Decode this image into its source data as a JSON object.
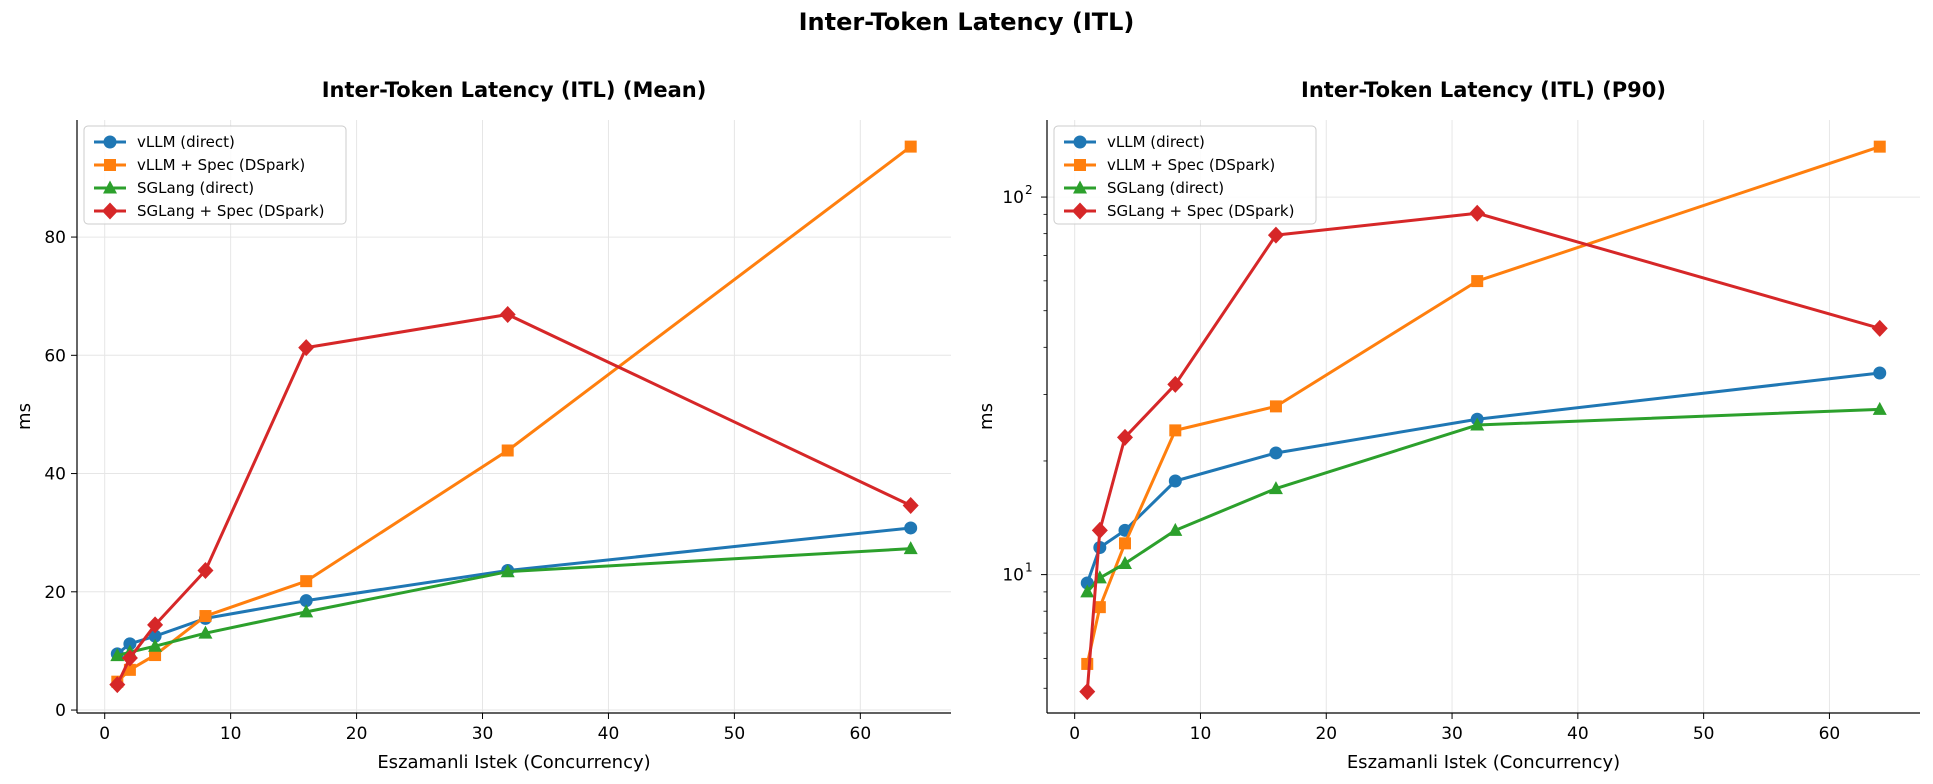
{
  "suptitle": "Inter-Token Latency (ITL)",
  "chart_data": [
    {
      "type": "line",
      "title": "Inter-Token Latency (ITL) (Mean)",
      "xlabel": "Eszamanli Istek (Concurrency)",
      "ylabel": "ms",
      "x": [
        1,
        2,
        4,
        8,
        16,
        32,
        64
      ],
      "xlim": [
        -2.2,
        67.2
      ],
      "xticks": [
        0,
        10,
        20,
        30,
        40,
        50,
        60
      ],
      "ylim": [
        -0.5,
        99.8
      ],
      "yticks": [
        0,
        20,
        40,
        60,
        80
      ],
      "yscale": "linear",
      "grid": true,
      "legend": "top-left",
      "series": [
        {
          "name": "vLLM (direct)",
          "color": "#1f77b4",
          "marker": "circle",
          "values": [
            9.5,
            11.2,
            12.5,
            15.5,
            18.5,
            23.6,
            30.8
          ]
        },
        {
          "name": "vLLM + Spec (DSpark)",
          "color": "#ff7f0e",
          "marker": "square",
          "values": [
            4.8,
            6.8,
            9.3,
            15.9,
            21.8,
            43.9,
            95.3
          ]
        },
        {
          "name": "SGLang (direct)",
          "color": "#2ca02c",
          "marker": "triangle",
          "values": [
            9.2,
            9.8,
            10.8,
            13.0,
            16.6,
            23.4,
            27.3
          ]
        },
        {
          "name": "SGLang + Spec (DSpark)",
          "color": "#d62728",
          "marker": "diamond",
          "values": [
            4.3,
            8.8,
            14.4,
            23.6,
            61.3,
            66.9,
            34.6
          ]
        }
      ]
    },
    {
      "type": "line",
      "title": "Inter-Token Latency (ITL) (P90)",
      "xlabel": "Eszamanli Istek (Concurrency)",
      "ylabel": "ms",
      "x": [
        1,
        2,
        4,
        8,
        16,
        32,
        64
      ],
      "xlim": [
        -2.2,
        67.2
      ],
      "xticks": [
        0,
        10,
        20,
        30,
        40,
        50,
        60
      ],
      "ylim": [
        4.3,
        160
      ],
      "yticks": [
        10,
        100
      ],
      "ytick_labels": [
        [
          "10",
          "1"
        ],
        [
          "10",
          "2"
        ]
      ],
      "yscale": "log",
      "grid": true,
      "legend": "top-left",
      "series": [
        {
          "name": "vLLM (direct)",
          "color": "#1f77b4",
          "marker": "circle",
          "values": [
            9.5,
            11.8,
            13.1,
            17.7,
            21.0,
            25.8,
            34.2
          ]
        },
        {
          "name": "vLLM + Spec (DSpark)",
          "color": "#ff7f0e",
          "marker": "square",
          "values": [
            5.8,
            8.2,
            12.1,
            24.1,
            27.9,
            59.9,
            136.0
          ]
        },
        {
          "name": "SGLang (direct)",
          "color": "#2ca02c",
          "marker": "triangle",
          "values": [
            9.0,
            9.8,
            10.7,
            13.1,
            16.9,
            24.9,
            27.4
          ]
        },
        {
          "name": "SGLang + Spec (DSpark)",
          "color": "#d62728",
          "marker": "diamond",
          "values": [
            4.9,
            13.1,
            23.1,
            31.9,
            79.3,
            90.6,
            44.9
          ]
        }
      ]
    }
  ]
}
